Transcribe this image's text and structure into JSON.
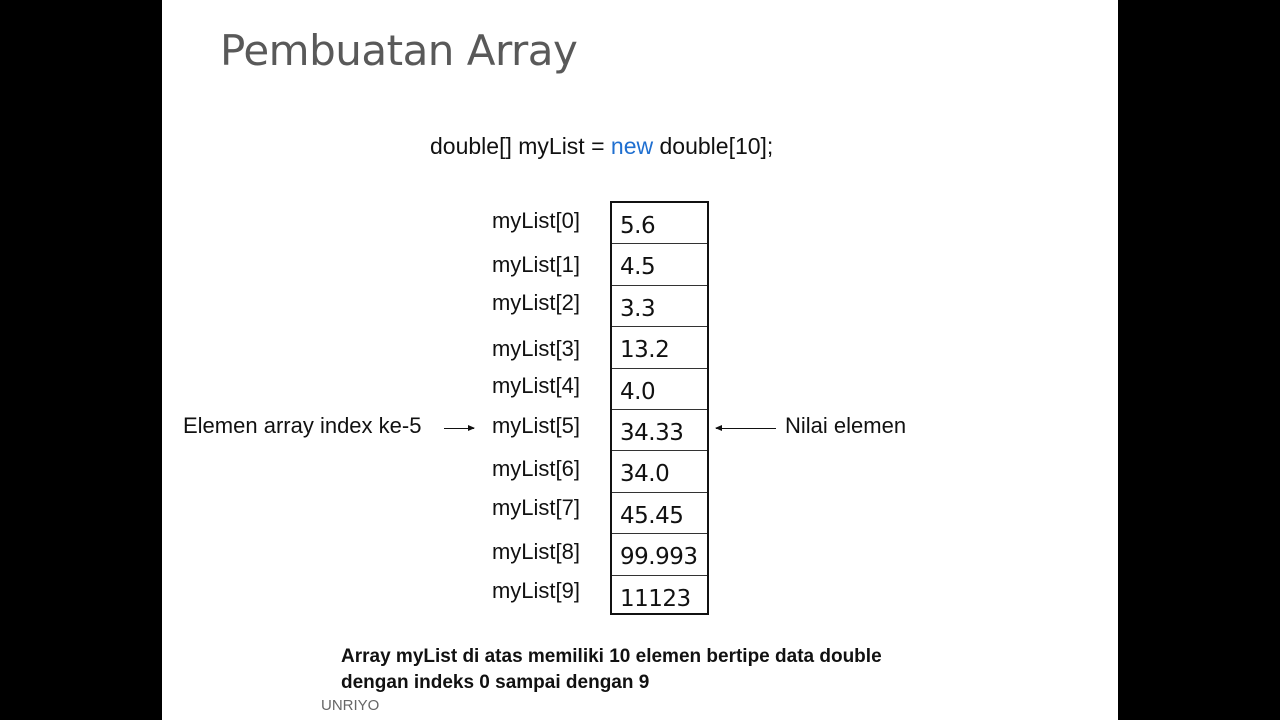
{
  "slide": {
    "title": "Pembuatan Array",
    "code": {
      "before": "double[] myList = ",
      "keyword": "new",
      "after": " double[10];",
      "keyword_color": "#1f6fd0"
    },
    "array": [
      {
        "label": "myList[0]",
        "value": "5.6"
      },
      {
        "label": "myList[1]",
        "value": "4.5"
      },
      {
        "label": "myList[2]",
        "value": "3.3"
      },
      {
        "label": "myList[3]",
        "value": "13.2"
      },
      {
        "label": "myList[4]",
        "value": "4.0"
      },
      {
        "label": "myList[5]",
        "value": "34.33"
      },
      {
        "label": "myList[6]",
        "value": "34.0"
      },
      {
        "label": "myList[7]",
        "value": "45.45"
      },
      {
        "label": "myList[8]",
        "value": "99.993"
      },
      {
        "label": "myList[9]",
        "value": "11123"
      }
    ],
    "annotation_left": "Elemen array index ke-5",
    "annotation_right": "Nilai elemen",
    "caption_line1": "Array myList di atas memiliki 10 elemen bertipe data double",
    "caption_line2": "dengan indeks 0 sampai dengan 9",
    "footer": "UNRIYO"
  }
}
